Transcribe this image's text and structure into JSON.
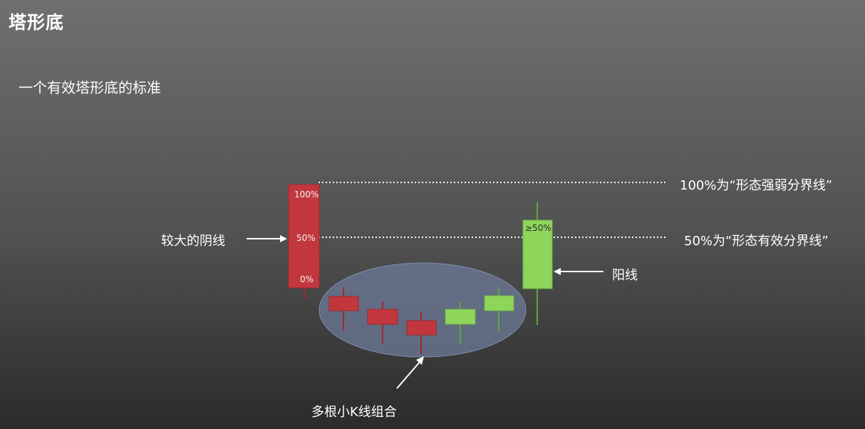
{
  "title": "塔形底",
  "subtitle": "一个有效塔形底的标准",
  "labels": {
    "big_bearish": "较大的阴线",
    "line_100": "100%为“形态强弱分界线”",
    "line_50": "50%为“形态有效分界线”",
    "bullish": "阳线",
    "small_group": "多根小K线组合",
    "pct_100": "100%",
    "pct_50": "50%",
    "pct_0": "0%",
    "pct_ge50": "≥50%"
  },
  "colors": {
    "bearish": "#c2373d",
    "bullish": "#8ed65b",
    "ellipse": "#6f7e9e",
    "background": "#5e5e5e"
  }
}
